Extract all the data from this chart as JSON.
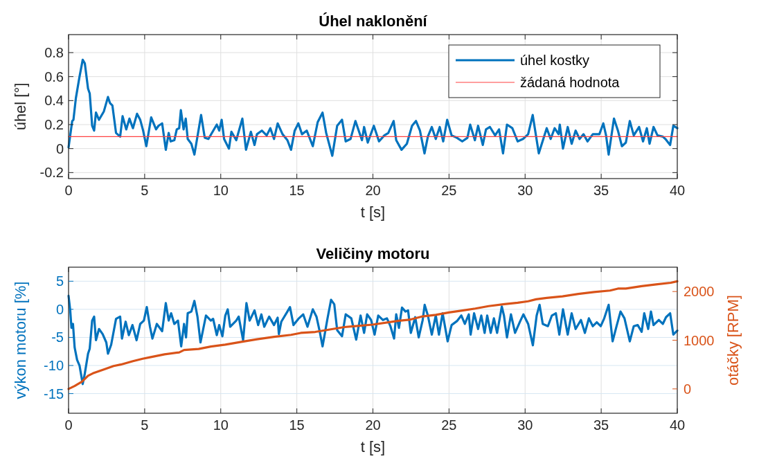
{
  "chart_data": [
    {
      "type": "line",
      "title": "Úhel naklonění",
      "xlabel": "t [s]",
      "ylabel": "úhel [°]",
      "xlim": [
        0,
        40
      ],
      "xticks": [
        0,
        5,
        10,
        15,
        20,
        25,
        30,
        35,
        40
      ],
      "ylim": [
        -0.25,
        0.95
      ],
      "yticks": [
        -0.2,
        0,
        0.2,
        0.4,
        0.6,
        0.8
      ],
      "grid": true,
      "legend": "top right",
      "series": [
        {
          "name": "úhel kostky",
          "color": "#0072bd",
          "x": [
            0,
            0.24,
            0.32,
            0.48,
            0.72,
            0.93,
            1.07,
            1.28,
            1.39,
            1.55,
            1.68,
            1.8,
            2.0,
            2.32,
            2.59,
            2.72,
            2.88,
            3.12,
            3.39,
            3.55,
            3.79,
            4.0,
            4.23,
            4.5,
            4.71,
            4.9,
            5.11,
            5.43,
            5.75,
            5.91,
            6.15,
            6.39,
            6.58,
            6.71,
            6.95,
            7.11,
            7.27,
            7.38,
            7.56,
            7.7,
            7.83,
            8.07,
            8.27,
            8.47,
            8.71,
            8.95,
            9.19,
            9.74,
            9.9,
            10.06,
            10.22,
            10.54,
            10.7,
            11.02,
            11.42,
            11.66,
            11.98,
            12.22,
            12.38,
            12.7,
            13.02,
            13.26,
            13.5,
            13.74,
            14.06,
            14.38,
            14.62,
            14.86,
            15.1,
            15.34,
            15.65,
            16.05,
            16.37,
            16.69,
            16.93,
            17.33,
            17.65,
            17.97,
            18.21,
            18.53,
            18.85,
            19.28,
            19.42,
            19.66,
            20.06,
            20.4,
            20.75,
            21.01,
            21.36,
            21.53,
            21.88,
            22.23,
            22.57,
            22.83,
            23.09,
            23.39,
            23.61,
            23.87,
            24.13,
            24.39,
            24.62,
            24.88,
            25.17,
            25.52,
            25.87,
            26.21,
            26.39,
            26.7,
            26.91,
            27.22,
            27.43,
            27.69,
            28.03,
            28.29,
            28.55,
            28.81,
            29.16,
            29.51,
            29.86,
            30.2,
            30.5,
            30.9,
            31.42,
            31.68,
            31.94,
            32.2,
            32.28,
            32.49,
            32.8,
            33.06,
            33.32,
            33.58,
            33.84,
            34.1,
            34.45,
            34.88,
            35.14,
            35.32,
            35.49,
            35.84,
            36.1,
            36.36,
            36.62,
            36.88,
            37.14,
            37.49,
            37.75,
            38.0,
            38.18,
            38.44,
            38.7,
            39.05,
            39.22,
            39.53,
            39.74,
            40
          ],
          "values": [
            0.01,
            0.23,
            0.24,
            0.42,
            0.6,
            0.74,
            0.71,
            0.5,
            0.46,
            0.19,
            0.15,
            0.3,
            0.24,
            0.31,
            0.43,
            0.38,
            0.36,
            0.13,
            0.1,
            0.27,
            0.16,
            0.25,
            0.17,
            0.29,
            0.24,
            0.15,
            0.02,
            0.26,
            0.16,
            0.19,
            0.21,
            -0.01,
            0.13,
            0.06,
            0.07,
            0.16,
            0.17,
            0.32,
            0.16,
            0.25,
            0.08,
            0.04,
            -0.05,
            0.1,
            0.28,
            0.09,
            0.08,
            0.2,
            0.15,
            0.24,
            0.08,
            0,
            0.14,
            0.07,
            0.25,
            -0.01,
            0.14,
            0.03,
            0.12,
            0.15,
            0.11,
            0.17,
            0.08,
            0.21,
            0.12,
            0.07,
            -0.01,
            0.15,
            0.21,
            0.12,
            0.15,
            0.02,
            0.22,
            0.3,
            0.13,
            -0.06,
            0.19,
            0.24,
            0.06,
            0.08,
            0.23,
            0.07,
            0.18,
            0.05,
            0.19,
            0.06,
            0.11,
            0.13,
            0.23,
            0.07,
            -0.01,
            0.04,
            0.19,
            0.23,
            0.15,
            -0.04,
            0.1,
            0.18,
            0.08,
            0.18,
            0.06,
            0.24,
            0.11,
            0.09,
            0.06,
            0.09,
            0.2,
            0.07,
            0.19,
            0.03,
            0.16,
            0.18,
            0.11,
            0.16,
            -0.04,
            0.2,
            0.17,
            0.06,
            0.08,
            0.12,
            0.28,
            -0.04,
            0.17,
            0.08,
            0.17,
            0.12,
            0.2,
            0,
            0.18,
            0.04,
            0.15,
            0.08,
            0.12,
            0.06,
            0.12,
            0.12,
            0.21,
            0.11,
            -0.05,
            0.25,
            0.15,
            0.02,
            0.05,
            0.23,
            0.11,
            0.18,
            0.06,
            0.17,
            0.04,
            0.18,
            0.11,
            0.1,
            0.08,
            0.03,
            0.19,
            0.17
          ]
        },
        {
          "name": "žádaná hodnota",
          "color": "#ff4040",
          "x": [
            0,
            40
          ],
          "values": [
            0.1,
            0.1
          ]
        }
      ]
    },
    {
      "type": "line",
      "title": "Veličiny motoru",
      "xlabel": "t [s]",
      "ylabel": "výkon motoru [%]",
      "y2label": "otáčky [RPM]",
      "xlim": [
        0,
        40
      ],
      "xticks": [
        0,
        5,
        10,
        15,
        20,
        25,
        30,
        35,
        40
      ],
      "ylim": [
        -18.5,
        7.5
      ],
      "yticks": [
        -15,
        -10,
        -5,
        0,
        5
      ],
      "y2lim": [
        -500,
        2500
      ],
      "y2ticks": [
        0,
        1000,
        2000
      ],
      "grid": true,
      "series": [
        {
          "color": "#0072bd",
          "x": [
            0,
            0.11,
            0.19,
            0.29,
            0.4,
            0.56,
            0.72,
            0.93,
            1.07,
            1.28,
            1.39,
            1.55,
            1.68,
            1.8,
            2.0,
            2.24,
            2.48,
            2.59,
            2.8,
            3.12,
            3.39,
            3.51,
            3.75,
            3.96,
            4.2,
            4.47,
            4.71,
            4.95,
            5.14,
            5.35,
            5.51,
            5.8,
            6.15,
            6.39,
            6.58,
            6.74,
            6.95,
            7.19,
            7.4,
            7.59,
            7.72,
            7.83,
            8.07,
            8.27,
            8.47,
            8.67,
            9.03,
            9.35,
            9.5,
            9.74,
            9.9,
            10.11,
            10.3,
            10.46,
            10.62,
            11.02,
            11.18,
            11.47,
            11.69,
            11.9,
            12.22,
            12.46,
            12.67,
            12.86,
            13.18,
            13.5,
            13.74,
            13.82,
            13.98,
            14.38,
            14.55,
            14.78,
            15.1,
            15.42,
            15.7,
            16.05,
            16.29,
            16.5,
            16.69,
            17.01,
            17.25,
            17.46,
            17.65,
            17.97,
            18.21,
            18.58,
            18.9,
            19.19,
            19.42,
            19.62,
            19.88,
            20.11,
            20.35,
            20.66,
            20.92,
            21.15,
            21.39,
            21.53,
            21.71,
            21.91,
            22.14,
            22.31,
            22.49,
            22.78,
            23.01,
            23.27,
            23.4,
            23.61,
            23.87,
            24.13,
            24.34,
            24.58,
            24.91,
            25.17,
            25.52,
            25.81,
            26.04,
            26.3,
            26.42,
            26.65,
            26.91,
            27.12,
            27.34,
            27.51,
            27.74,
            27.95,
            28.16,
            28.47,
            28.61,
            28.81,
            29.07,
            29.34,
            29.68,
            29.89,
            30.2,
            30.51,
            30.76,
            30.95,
            31.16,
            31.5,
            31.76,
            32.02,
            32.25,
            32.49,
            32.8,
            33.06,
            33.32,
            33.67,
            33.93,
            34.19,
            34.45,
            34.71,
            34.97,
            35.2,
            35.49,
            35.75,
            36.01,
            36.27,
            36.53,
            36.88,
            37.14,
            37.4,
            37.66,
            37.83,
            38.09,
            38.27,
            38.44,
            38.79,
            39.05,
            39.26,
            39.53,
            39.74,
            40
          ],
          "values": [
            2.4,
            -0.2,
            -3.3,
            -2.6,
            -6.8,
            -9,
            -10,
            -13.3,
            -11.4,
            -7.9,
            -7,
            -2,
            -1.3,
            -5.5,
            -3.5,
            -4.4,
            -5.9,
            -7.9,
            -6.3,
            -1.7,
            -1.3,
            -5.2,
            -2.2,
            -4.6,
            -2.8,
            -5.5,
            -2.6,
            -2,
            0.4,
            -3.1,
            -5.2,
            -2.6,
            -3.9,
            1.1,
            -2,
            -0.7,
            -2.6,
            -2,
            -6.6,
            -2.6,
            -5,
            -0.7,
            -0.4,
            1.5,
            -1.3,
            -5.9,
            -1.1,
            -2,
            -1.7,
            -4.6,
            -2.8,
            -4.8,
            -1.1,
            0,
            -3.1,
            -2,
            -1.3,
            -5.5,
            1.1,
            -2,
            -0.2,
            -2.8,
            -0.9,
            -3.1,
            -1.3,
            -2.8,
            -1.5,
            -4.4,
            -2.2,
            -0.4,
            0.4,
            -2.8,
            -1.7,
            -0.9,
            -3.1,
            0,
            -1.3,
            -3.9,
            -6.6,
            -1.7,
            1.7,
            0.9,
            -3.7,
            -4.8,
            -0.9,
            -1.6,
            -5.4,
            -1.1,
            -4.2,
            -0.9,
            -1.9,
            -4.5,
            -1.1,
            -1.9,
            -1.6,
            -3,
            -5.2,
            -0.9,
            -3.3,
            0.3,
            -0.4,
            -0.2,
            -4.2,
            -1.4,
            -5,
            -1.9,
            0.8,
            -1.1,
            -4.5,
            -1.1,
            -4.5,
            -0.7,
            -5.7,
            -2.8,
            -2.1,
            -1.1,
            -2.6,
            -0.9,
            -4.5,
            -0.7,
            -3.5,
            -1.1,
            -4.2,
            -1.1,
            -4.2,
            -1.6,
            -4.2,
            0.5,
            -1.1,
            -5,
            -0.9,
            -4.2,
            -2.1,
            -0.9,
            -2.6,
            -6.4,
            -1.1,
            0.8,
            -2.6,
            -3,
            -1.1,
            -0.7,
            -4.5,
            0,
            -4.5,
            -0.7,
            -3.5,
            -1.9,
            -4.2,
            -1.6,
            -3,
            -2.3,
            -3,
            -1.6,
            0.8,
            -5.7,
            -3,
            -0.4,
            -1.6,
            -5.7,
            -3,
            -2.8,
            -4,
            -0.7,
            -3.5,
            -0.4,
            -2.8,
            -1.9,
            -2.6,
            -1.4,
            -0.7,
            -4.5,
            -3.8
          ]
        },
        {
          "color": "#d95319",
          "axis": "y2",
          "x": [
            0,
            0.4,
            0.88,
            1.28,
            1.6,
            2.32,
            2.96,
            3.43,
            4.23,
            4.87,
            5.35,
            6.31,
            7.27,
            7.59,
            8.55,
            9.35,
            10.3,
            11.42,
            12.38,
            13.5,
            14.62,
            15.26,
            16.21,
            17.17,
            18.13,
            19.97,
            21.71,
            22.4,
            23.27,
            24.13,
            25,
            25.87,
            26.73,
            27.6,
            28.64,
            29.51,
            30.2,
            30.72,
            31.42,
            32.46,
            33.5,
            34.54,
            35.58,
            36.1,
            36.62,
            37.66,
            38.7,
            39.57,
            40
          ],
          "values": [
            0,
            60,
            150,
            270,
            320,
            400,
            470,
            500,
            570,
            620,
            650,
            710,
            750,
            800,
            820,
            870,
            910,
            970,
            1020,
            1070,
            1110,
            1150,
            1170,
            1220,
            1270,
            1320,
            1400,
            1420,
            1490,
            1520,
            1570,
            1610,
            1650,
            1700,
            1740,
            1770,
            1800,
            1840,
            1870,
            1900,
            1950,
            1990,
            2020,
            2060,
            2060,
            2110,
            2150,
            2180,
            2210
          ]
        }
      ]
    }
  ]
}
